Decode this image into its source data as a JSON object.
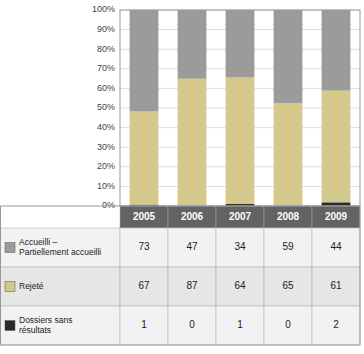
{
  "chart_data": {
    "type": "bar",
    "stacked": true,
    "grid": true,
    "categories": [
      "2005",
      "2006",
      "2007",
      "2008",
      "2009"
    ],
    "ylim": [
      0,
      100
    ],
    "yticks": [
      {
        "value": 0,
        "label": "0%"
      },
      {
        "value": 10,
        "label": "10%"
      },
      {
        "value": 20,
        "label": "20%"
      },
      {
        "value": 30,
        "label": "30%"
      },
      {
        "value": 40,
        "label": "40%"
      },
      {
        "value": 50,
        "label": "50%"
      },
      {
        "value": 60,
        "label": "60%"
      },
      {
        "value": 70,
        "label": "70%"
      },
      {
        "value": 80,
        "label": "80%"
      },
      {
        "value": 90,
        "label": "90%"
      },
      {
        "value": 100,
        "label": "100%"
      }
    ],
    "series": [
      {
        "name": "Dossiers sans\nrésultats",
        "color": "#2a2a2a",
        "values": [
          0.70921986,
          0,
          1.01010101,
          0,
          1.86915888
        ],
        "counts": [
          1,
          0,
          1,
          0,
          2
        ]
      },
      {
        "name": "Rejeté",
        "color": "#d4c98a",
        "values": [
          47.5177305,
          64.92537313,
          64.64646465,
          52.41935484,
          57.00934579
        ],
        "counts": [
          67,
          87,
          64,
          65,
          61
        ]
      },
      {
        "name": "Accueilli –\nPartiellement accueilli",
        "color": "#9b9b9b",
        "values": [
          51.77304965,
          35.07462687,
          34.34343434,
          47.58064516,
          41.12149533
        ],
        "counts": [
          73,
          47,
          34,
          59,
          44
        ]
      }
    ]
  }
}
